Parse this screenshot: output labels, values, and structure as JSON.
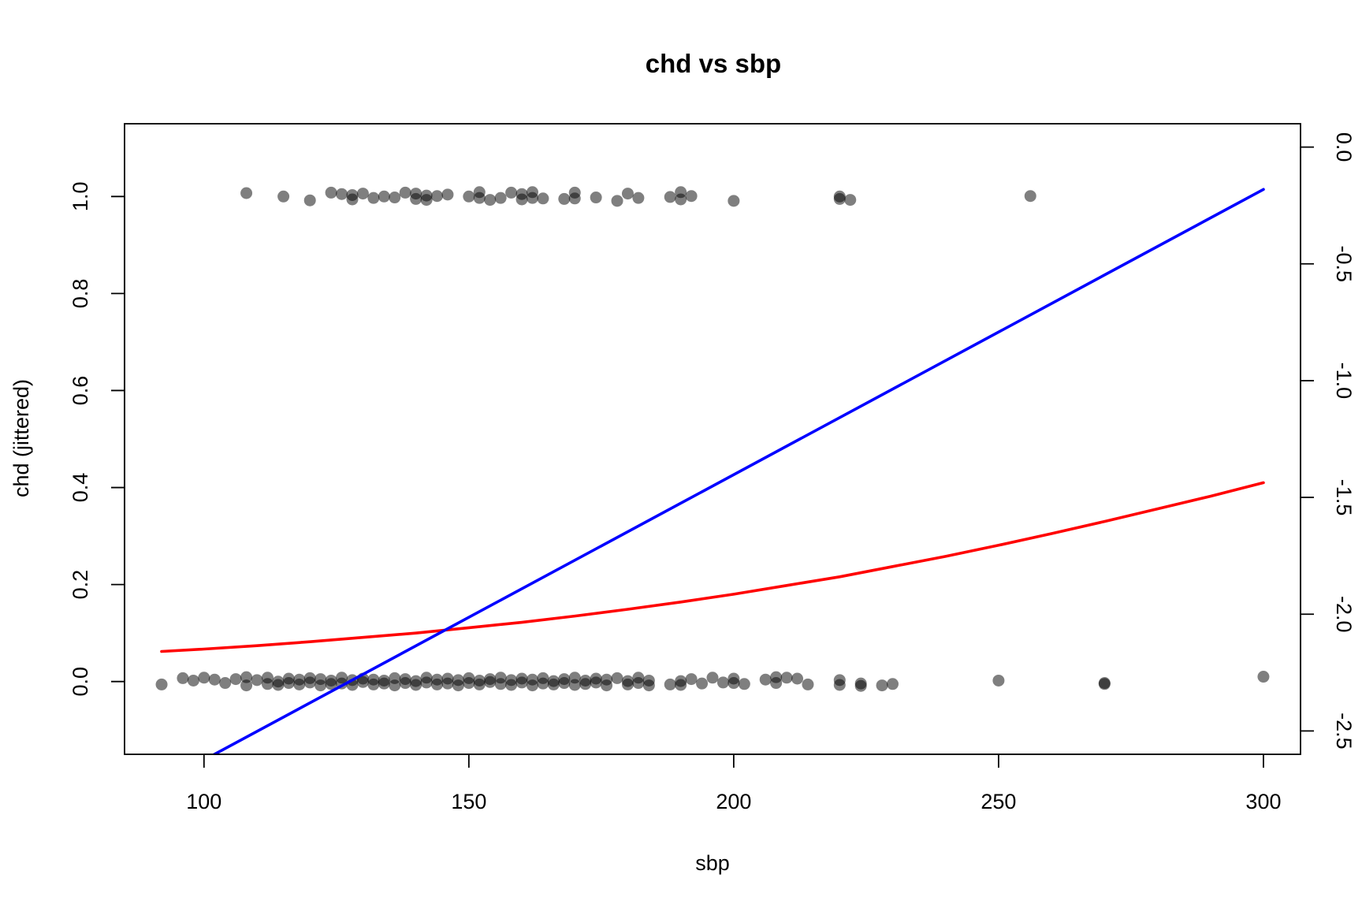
{
  "chart_data": {
    "type": "scatter",
    "title": "chd vs sbp",
    "xlabel": "sbp",
    "ylabel": "chd (jittered)",
    "y2label": "",
    "xlim": [
      85,
      307
    ],
    "ylim": [
      -0.15,
      1.15
    ],
    "y2lim": [
      -2.6,
      0.1
    ],
    "x_ticks": [
      "100",
      "150",
      "200",
      "250",
      "300"
    ],
    "y_ticks": [
      "0.0",
      "0.2",
      "0.4",
      "0.6",
      "0.8",
      "1.0"
    ],
    "y2_ticks": [
      "0.0",
      "-0.5",
      "-1.0",
      "-1.5",
      "-2.0",
      "-2.5"
    ],
    "grid": false,
    "legend": "none",
    "colors": {
      "points": "#000000",
      "points_opacity": 0.5,
      "probability_curve": "#ff0000",
      "logit_line": "#0000ff"
    },
    "series": [
      {
        "kind": "points",
        "points": [
          [
            108,
            1.007
          ],
          [
            115,
            1.0
          ],
          [
            120,
            0.992
          ],
          [
            124,
            1.008
          ],
          [
            126,
            1.005
          ],
          [
            128,
            1.003
          ],
          [
            128,
            0.994
          ],
          [
            130,
            1.006
          ],
          [
            132,
            0.997
          ],
          [
            134,
            1.0
          ],
          [
            136,
            0.998
          ],
          [
            138,
            1.008
          ],
          [
            140,
            0.995
          ],
          [
            140,
            1.006
          ],
          [
            142,
            1.002
          ],
          [
            142,
            0.993
          ],
          [
            144,
            1.001
          ],
          [
            146,
            1.004
          ],
          [
            150,
            1.0
          ],
          [
            152,
            1.009
          ],
          [
            152,
            0.997
          ],
          [
            154,
            0.993
          ],
          [
            156,
            0.997
          ],
          [
            158,
            1.008
          ],
          [
            160,
            1.005
          ],
          [
            160,
            0.994
          ],
          [
            162,
            1.009
          ],
          [
            162,
            0.997
          ],
          [
            164,
            0.996
          ],
          [
            168,
            0.995
          ],
          [
            170,
            1.008
          ],
          [
            170,
            0.996
          ],
          [
            174,
            0.998
          ],
          [
            178,
            0.991
          ],
          [
            180,
            1.006
          ],
          [
            182,
            0.997
          ],
          [
            188,
            0.999
          ],
          [
            190,
            1.009
          ],
          [
            190,
            0.994
          ],
          [
            192,
            1.001
          ],
          [
            200,
            0.991
          ],
          [
            220,
            1.0
          ],
          [
            220,
            0.995
          ],
          [
            222,
            0.993
          ],
          [
            256,
            1.001
          ],
          [
            92,
            -0.006
          ],
          [
            96,
            0.007
          ],
          [
            98,
            0.002
          ],
          [
            100,
            0.008
          ],
          [
            102,
            0.004
          ],
          [
            104,
            -0.003
          ],
          [
            106,
            0.005
          ],
          [
            108,
            -0.008
          ],
          [
            108,
            0.009
          ],
          [
            110,
            0.003
          ],
          [
            112,
            -0.005
          ],
          [
            112,
            0.008
          ],
          [
            114,
            0.0
          ],
          [
            114,
            -0.007
          ],
          [
            116,
            0.006
          ],
          [
            116,
            -0.003
          ],
          [
            118,
            0.004
          ],
          [
            118,
            -0.006
          ],
          [
            120,
            0.007
          ],
          [
            120,
            -0.002
          ],
          [
            122,
            0.005
          ],
          [
            122,
            -0.008
          ],
          [
            124,
            0.002
          ],
          [
            124,
            -0.005
          ],
          [
            126,
            0.008
          ],
          [
            126,
            -0.004
          ],
          [
            128,
            0.003
          ],
          [
            128,
            -0.007
          ],
          [
            130,
            0.006
          ],
          [
            130,
            -0.001
          ],
          [
            132,
            0.004
          ],
          [
            132,
            -0.006
          ],
          [
            134,
            0.002
          ],
          [
            134,
            -0.004
          ],
          [
            136,
            0.007
          ],
          [
            136,
            -0.008
          ],
          [
            138,
            0.005
          ],
          [
            138,
            -0.003
          ],
          [
            140,
            0.001
          ],
          [
            140,
            -0.007
          ],
          [
            142,
            0.008
          ],
          [
            142,
            -0.002
          ],
          [
            144,
            0.004
          ],
          [
            144,
            -0.006
          ],
          [
            146,
            0.006
          ],
          [
            146,
            -0.004
          ],
          [
            148,
            0.003
          ],
          [
            148,
            -0.008
          ],
          [
            150,
            0.007
          ],
          [
            150,
            -0.003
          ],
          [
            152,
            0.002
          ],
          [
            152,
            -0.006
          ],
          [
            154,
            0.005
          ],
          [
            154,
            -0.001
          ],
          [
            156,
            0.008
          ],
          [
            156,
            -0.005
          ],
          [
            158,
            0.003
          ],
          [
            158,
            -0.007
          ],
          [
            160,
            0.006
          ],
          [
            160,
            -0.002
          ],
          [
            162,
            0.004
          ],
          [
            162,
            -0.008
          ],
          [
            164,
            0.007
          ],
          [
            164,
            -0.004
          ],
          [
            166,
            0.001
          ],
          [
            166,
            -0.006
          ],
          [
            168,
            0.005
          ],
          [
            168,
            -0.003
          ],
          [
            170,
            0.008
          ],
          [
            170,
            -0.007
          ],
          [
            172,
            0.002
          ],
          [
            172,
            -0.005
          ],
          [
            174,
            0.006
          ],
          [
            174,
            -0.002
          ],
          [
            176,
            0.004
          ],
          [
            176,
            -0.008
          ],
          [
            178,
            0.007
          ],
          [
            180,
            0.001
          ],
          [
            180,
            -0.006
          ],
          [
            182,
            0.008
          ],
          [
            182,
            -0.003
          ],
          [
            184,
            0.002
          ],
          [
            184,
            -0.008
          ],
          [
            188,
            -0.006
          ],
          [
            190,
            0.001
          ],
          [
            190,
            -0.007
          ],
          [
            192,
            0.005
          ],
          [
            194,
            -0.004
          ],
          [
            196,
            0.008
          ],
          [
            198,
            -0.002
          ],
          [
            200,
            0.006
          ],
          [
            200,
            -0.003
          ],
          [
            202,
            -0.005
          ],
          [
            206,
            0.004
          ],
          [
            208,
            -0.003
          ],
          [
            208,
            0.009
          ],
          [
            210,
            0.008
          ],
          [
            212,
            0.006
          ],
          [
            214,
            -0.006
          ],
          [
            220,
            0.003
          ],
          [
            220,
            -0.007
          ],
          [
            224,
            -0.004
          ],
          [
            224,
            -0.009
          ],
          [
            228,
            -0.008
          ],
          [
            230,
            -0.005
          ],
          [
            250,
            0.002
          ],
          [
            270,
            -0.003
          ],
          [
            270,
            -0.005
          ],
          [
            300,
            0.01
          ]
        ]
      },
      {
        "kind": "line",
        "axis": "left",
        "x": [
          92,
          100,
          110,
          120,
          130,
          140,
          150,
          160,
          170,
          180,
          190,
          200,
          210,
          220,
          230,
          240,
          250,
          260,
          270,
          280,
          290,
          300
        ],
        "y": [
          0.062,
          0.067,
          0.074,
          0.082,
          0.091,
          0.1,
          0.111,
          0.122,
          0.135,
          0.149,
          0.164,
          0.18,
          0.198,
          0.216,
          0.237,
          0.258,
          0.281,
          0.305,
          0.33,
          0.356,
          0.382,
          0.41
        ]
      },
      {
        "kind": "line",
        "axis": "right",
        "x": [
          92,
          300
        ],
        "y": [
          -2.722,
          -0.181
        ]
      }
    ]
  }
}
